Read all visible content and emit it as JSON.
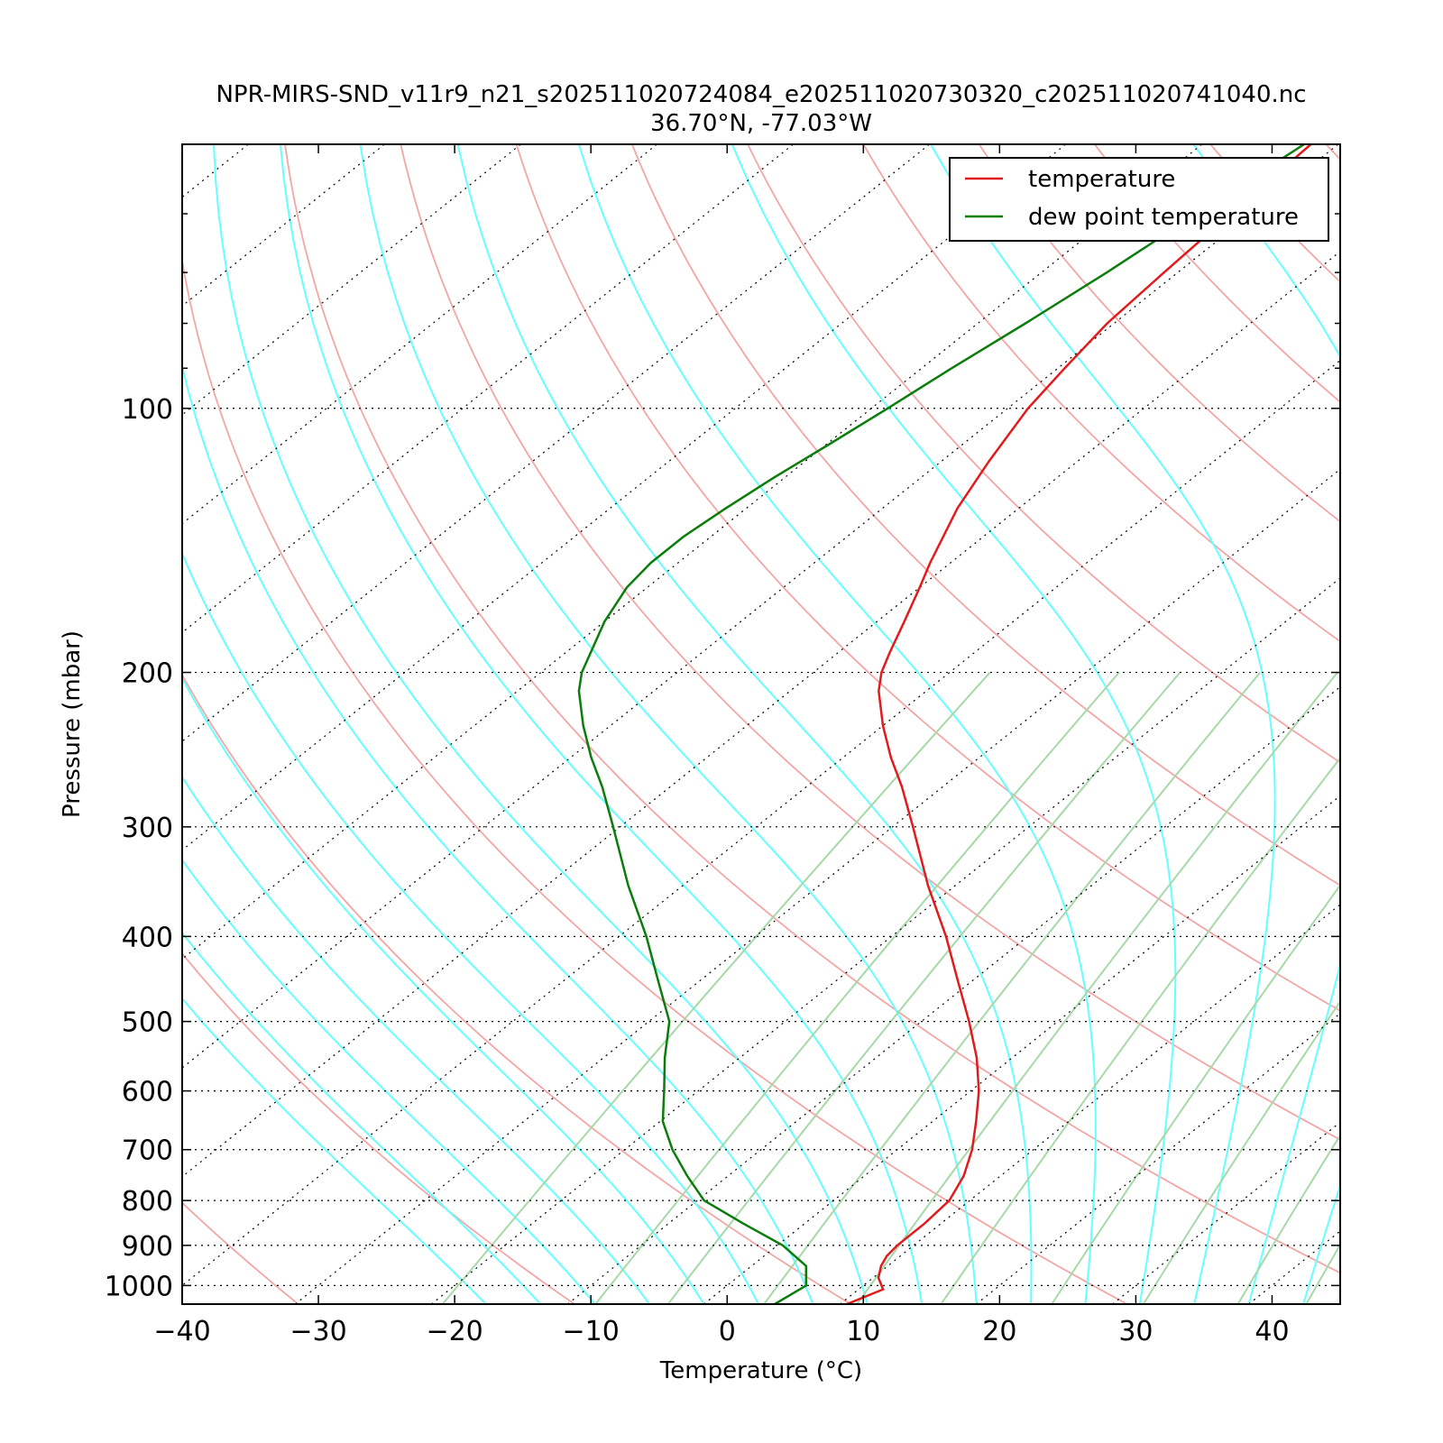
{
  "chart_data": {
    "type": "line",
    "title": "NPR-MIRS-SND_v11r9_n21_s202511020724084_e202511020730320_c202511020741040.nc",
    "subtitle": "36.70°N, -77.03°W",
    "xlabel": "Temperature (°C)",
    "ylabel": "Pressure (mbar)",
    "xlim": [
      -40,
      45
    ],
    "ylim": [
      1050,
      50
    ],
    "y_scale": "log",
    "skew": "skew-T",
    "x_ticks": [
      "−40",
      "−30",
      "−20",
      "−10",
      "0",
      "10",
      "20",
      "30",
      "40"
    ],
    "x_tick_values": [
      -40,
      -30,
      -20,
      -10,
      0,
      10,
      20,
      30,
      40
    ],
    "y_ticks": [
      "100",
      "200",
      "300",
      "400",
      "500",
      "600",
      "700",
      "800",
      "900",
      "1000"
    ],
    "y_tick_values": [
      100,
      200,
      300,
      400,
      500,
      600,
      700,
      800,
      900,
      1000
    ],
    "grid": "dotted horizontal isobars and skewed isotherms",
    "legend": {
      "placement": "top-right",
      "entries": [
        "temperature",
        "dew point temperature"
      ]
    },
    "colors": {
      "temperature": "#e31a1c",
      "dewpoint": "#0a7d0a",
      "dry_adiabat": "#f4a6a6",
      "moist_adiabat": "#66ffff",
      "mixing_ratio": "#a8d8a8"
    },
    "series": [
      {
        "name": "temperature",
        "points": [
          {
            "p": 1050,
            "t": 10.5
          },
          {
            "p": 1010,
            "t": 11.8
          },
          {
            "p": 980,
            "t": 10.4
          },
          {
            "p": 950,
            "t": 9.5
          },
          {
            "p": 925,
            "t": 9.0
          },
          {
            "p": 900,
            "t": 8.8
          },
          {
            "p": 850,
            "t": 8.8
          },
          {
            "p": 800,
            "t": 8.5
          },
          {
            "p": 750,
            "t": 7.3
          },
          {
            "p": 700,
            "t": 5.5
          },
          {
            "p": 650,
            "t": 3.2
          },
          {
            "p": 600,
            "t": 0.6
          },
          {
            "p": 550,
            "t": -2.6
          },
          {
            "p": 500,
            "t": -6.5
          },
          {
            "p": 450,
            "t": -11.0
          },
          {
            "p": 400,
            "t": -16.0
          },
          {
            "p": 350,
            "t": -22.0
          },
          {
            "p": 300,
            "t": -28.5
          },
          {
            "p": 270,
            "t": -33.0
          },
          {
            "p": 250,
            "t": -36.5
          },
          {
            "p": 230,
            "t": -40.0
          },
          {
            "p": 210,
            "t": -43.5
          },
          {
            "p": 200,
            "t": -45.0
          },
          {
            "p": 190,
            "t": -46.2
          },
          {
            "p": 175,
            "t": -48.0
          },
          {
            "p": 160,
            "t": -50.0
          },
          {
            "p": 150,
            "t": -51.5
          },
          {
            "p": 130,
            "t": -54.5
          },
          {
            "p": 115,
            "t": -56.5
          },
          {
            "p": 100,
            "t": -58.5
          },
          {
            "p": 90,
            "t": -59.5
          },
          {
            "p": 80,
            "t": -60.5
          },
          {
            "p": 70,
            "t": -61.0
          },
          {
            "p": 60,
            "t": -61.5
          },
          {
            "p": 50,
            "t": -62.0
          }
        ]
      },
      {
        "name": "dew point temperature",
        "points": [
          {
            "p": 1050,
            "t": 5.2
          },
          {
            "p": 1000,
            "t": 5.8
          },
          {
            "p": 950,
            "t": 4.0
          },
          {
            "p": 900,
            "t": 0.4
          },
          {
            "p": 850,
            "t": -4.5
          },
          {
            "p": 800,
            "t": -9.5
          },
          {
            "p": 750,
            "t": -13.0
          },
          {
            "p": 700,
            "t": -16.5
          },
          {
            "p": 650,
            "t": -19.8
          },
          {
            "p": 600,
            "t": -22.5
          },
          {
            "p": 550,
            "t": -25.5
          },
          {
            "p": 500,
            "t": -28.5
          },
          {
            "p": 450,
            "t": -33.0
          },
          {
            "p": 400,
            "t": -38.0
          },
          {
            "p": 350,
            "t": -44.0
          },
          {
            "p": 300,
            "t": -50.5
          },
          {
            "p": 270,
            "t": -55.0
          },
          {
            "p": 250,
            "t": -58.5
          },
          {
            "p": 230,
            "t": -62.0
          },
          {
            "p": 210,
            "t": -65.5
          },
          {
            "p": 200,
            "t": -67.0
          },
          {
            "p": 175,
            "t": -70.0
          },
          {
            "p": 160,
            "t": -71.5
          },
          {
            "p": 150,
            "t": -72.0
          },
          {
            "p": 140,
            "t": -72.0
          },
          {
            "p": 130,
            "t": -71.5
          },
          {
            "p": 120,
            "t": -70.8
          },
          {
            "p": 110,
            "t": -69.8
          },
          {
            "p": 100,
            "t": -68.8
          },
          {
            "p": 90,
            "t": -67.8
          },
          {
            "p": 80,
            "t": -66.5
          },
          {
            "p": 70,
            "t": -65.2
          },
          {
            "p": 60,
            "t": -64.0
          },
          {
            "p": 50,
            "t": -62.5
          }
        ]
      }
    ]
  }
}
